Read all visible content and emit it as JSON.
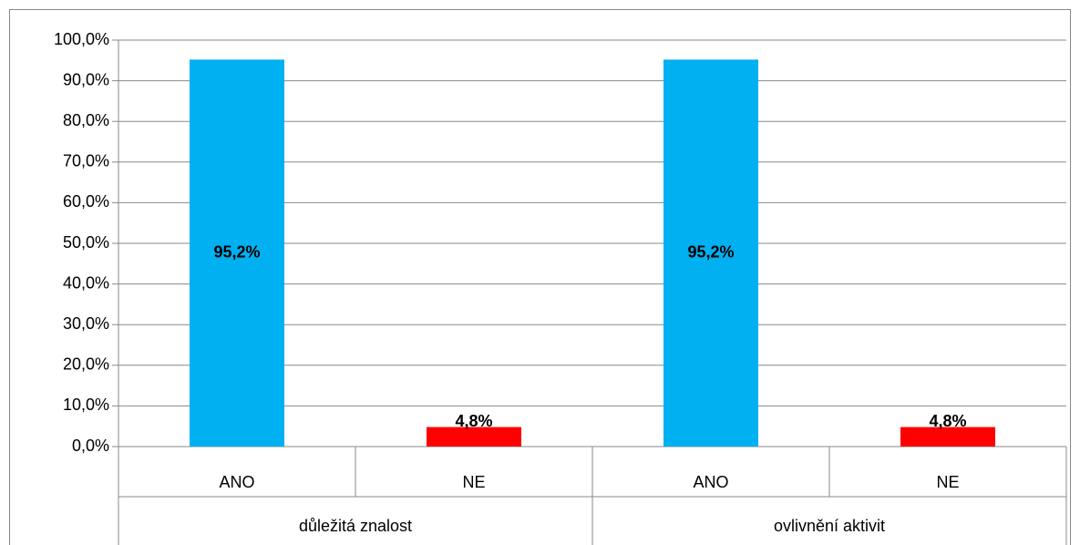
{
  "chart_data": {
    "type": "bar",
    "categories": [
      "ANO",
      "NE",
      "ANO",
      "NE"
    ],
    "groups": [
      "důležitá znalost",
      "ovlivnění aktivit"
    ],
    "values": [
      95.2,
      4.8,
      95.2,
      4.8
    ],
    "value_labels": [
      "95,2%",
      "4,8%",
      "95,2%",
      "4,8%"
    ],
    "colors": [
      "#00b0f0",
      "#ff0000",
      "#00b0f0",
      "#ff0000"
    ],
    "ylim": [
      0,
      100
    ],
    "yticks": [
      {
        "value": 0,
        "label": "0,0%"
      },
      {
        "value": 10,
        "label": "10,0%"
      },
      {
        "value": 20,
        "label": "20,0%"
      },
      {
        "value": 30,
        "label": "30,0%"
      },
      {
        "value": 40,
        "label": "40,0%"
      },
      {
        "value": 50,
        "label": "50,0%"
      },
      {
        "value": 60,
        "label": "60,0%"
      },
      {
        "value": 70,
        "label": "70,0%"
      },
      {
        "value": 80,
        "label": "80,0%"
      },
      {
        "value": 90,
        "label": "90,0%"
      },
      {
        "value": 100,
        "label": "100,0%"
      }
    ],
    "grid": true
  }
}
